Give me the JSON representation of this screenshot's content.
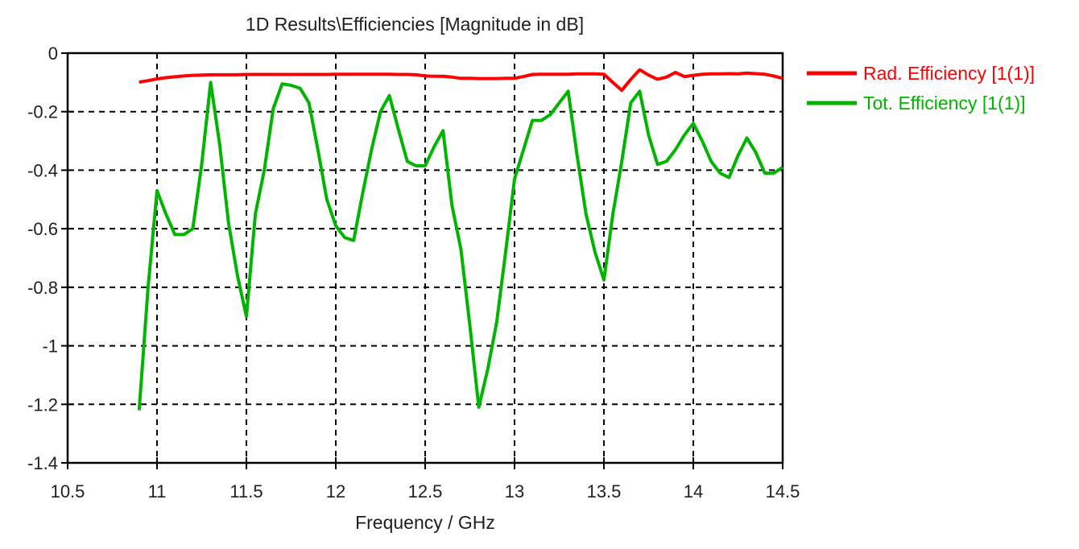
{
  "window": {
    "background_color": "#ffffff",
    "text_color": "#1f1f1f",
    "grid_color": "#000000"
  },
  "chart_data": {
    "type": "line",
    "title": "1D Results\\Efficiencies [Magnitude in dB]",
    "xlabel": "Frequency / GHz",
    "ylabel": "",
    "xlim": [
      10.5,
      14.5
    ],
    "ylim": [
      -1.4,
      0
    ],
    "x_ticks": [
      10.5,
      11,
      11.5,
      12,
      12.5,
      13,
      13.5,
      14,
      14.5
    ],
    "y_ticks": [
      0,
      -0.2,
      -0.4,
      -0.6,
      -0.8,
      -1,
      -1.2,
      -1.4
    ],
    "grid": true,
    "legend_position": "right",
    "x": [
      10.9,
      10.95,
      11,
      11.05,
      11.1,
      11.15,
      11.2,
      11.25,
      11.3,
      11.35,
      11.4,
      11.45,
      11.5,
      11.55,
      11.6,
      11.65,
      11.7,
      11.75,
      11.8,
      11.85,
      11.9,
      11.95,
      12,
      12.05,
      12.1,
      12.15,
      12.2,
      12.25,
      12.3,
      12.35,
      12.4,
      12.45,
      12.5,
      12.55,
      12.6,
      12.65,
      12.7,
      12.75,
      12.8,
      12.85,
      12.9,
      12.95,
      13,
      13.05,
      13.1,
      13.15,
      13.2,
      13.25,
      13.3,
      13.35,
      13.4,
      13.45,
      13.5,
      13.55,
      13.6,
      13.65,
      13.7,
      13.75,
      13.8,
      13.85,
      13.9,
      13.95,
      14,
      14.05,
      14.1,
      14.15,
      14.2,
      14.25,
      14.3,
      14.35,
      14.4,
      14.45,
      14.5
    ],
    "series": [
      {
        "id": "rad-efficiency",
        "name": "Rad. Efficiency [1(1)]",
        "color": "#ff0000",
        "values": [
          -0.099,
          -0.094,
          -0.088,
          -0.084,
          -0.081,
          -0.078,
          -0.076,
          -0.075,
          -0.074,
          -0.074,
          -0.074,
          -0.074,
          -0.073,
          -0.073,
          -0.073,
          -0.073,
          -0.073,
          -0.073,
          -0.073,
          -0.073,
          -0.073,
          -0.073,
          -0.072,
          -0.072,
          -0.072,
          -0.072,
          -0.072,
          -0.072,
          -0.072,
          -0.073,
          -0.073,
          -0.074,
          -0.078,
          -0.079,
          -0.079,
          -0.082,
          -0.086,
          -0.086,
          -0.087,
          -0.087,
          -0.087,
          -0.086,
          -0.086,
          -0.08,
          -0.073,
          -0.072,
          -0.072,
          -0.072,
          -0.072,
          -0.071,
          -0.071,
          -0.071,
          -0.072,
          -0.1,
          -0.127,
          -0.09,
          -0.057,
          -0.075,
          -0.089,
          -0.082,
          -0.066,
          -0.08,
          -0.076,
          -0.072,
          -0.071,
          -0.071,
          -0.07,
          -0.071,
          -0.068,
          -0.07,
          -0.072,
          -0.078,
          -0.086
        ]
      },
      {
        "id": "tot-efficiency",
        "name": "Tot. Efficiency [1(1)]",
        "color": "#00b400",
        "values": [
          -1.22,
          -0.8,
          -0.47,
          -0.55,
          -0.62,
          -0.62,
          -0.6,
          -0.38,
          -0.1,
          -0.31,
          -0.58,
          -0.76,
          -0.9,
          -0.55,
          -0.4,
          -0.19,
          -0.105,
          -0.11,
          -0.12,
          -0.17,
          -0.33,
          -0.5,
          -0.59,
          -0.63,
          -0.64,
          -0.48,
          -0.33,
          -0.2,
          -0.145,
          -0.26,
          -0.37,
          -0.385,
          -0.385,
          -0.32,
          -0.265,
          -0.52,
          -0.67,
          -0.93,
          -1.21,
          -1.08,
          -0.92,
          -0.68,
          -0.43,
          -0.33,
          -0.23,
          -0.23,
          -0.21,
          -0.17,
          -0.13,
          -0.35,
          -0.55,
          -0.68,
          -0.775,
          -0.55,
          -0.37,
          -0.17,
          -0.13,
          -0.28,
          -0.38,
          -0.37,
          -0.33,
          -0.28,
          -0.24,
          -0.3,
          -0.37,
          -0.41,
          -0.425,
          -0.35,
          -0.29,
          -0.34,
          -0.41,
          -0.41,
          -0.39
        ]
      }
    ]
  }
}
